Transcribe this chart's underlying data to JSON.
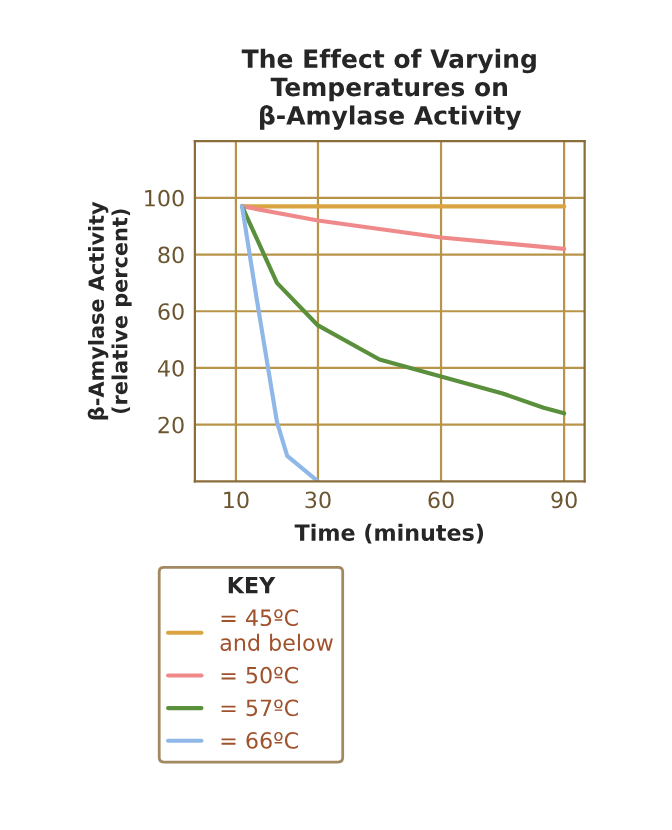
{
  "chart_data": {
    "type": "line",
    "title": "The Effect of Varying\nTemperatures on\nβ-Amylase Activity",
    "xlabel": "Time (minutes)",
    "ylabel": "β-Amylase Activity\n(relative percent)",
    "xlim": [
      0,
      95
    ],
    "xticks": [
      10,
      30,
      60,
      90
    ],
    "ylim": [
      0,
      120
    ],
    "yticks": [
      20,
      40,
      60,
      80,
      100
    ],
    "grid": true,
    "legend": "bottom",
    "legend_title": "KEY",
    "line_style": "solid",
    "marker": "none",
    "series": [
      {
        "name": "= 45ºC\nand below",
        "color": "#d9a441",
        "x": [
          11.5,
          90
        ],
        "values": [
          97,
          97
        ]
      },
      {
        "name": "= 50ºC",
        "color": "#f08a8a",
        "x": [
          11.5,
          30,
          60,
          90
        ],
        "values": [
          97,
          92,
          86,
          82
        ]
      },
      {
        "name": "= 57ºC",
        "color": "#5a8f3c",
        "x": [
          11.5,
          20,
          30,
          45,
          60,
          75,
          85,
          90
        ],
        "values": [
          97,
          70,
          55,
          43,
          37,
          31,
          26,
          24
        ]
      },
      {
        "name": "= 66ºC",
        "color": "#8fb8e8",
        "x": [
          11.5,
          15,
          20,
          22.5,
          30
        ],
        "values": [
          97,
          65,
          21,
          9,
          0
        ]
      }
    ]
  }
}
